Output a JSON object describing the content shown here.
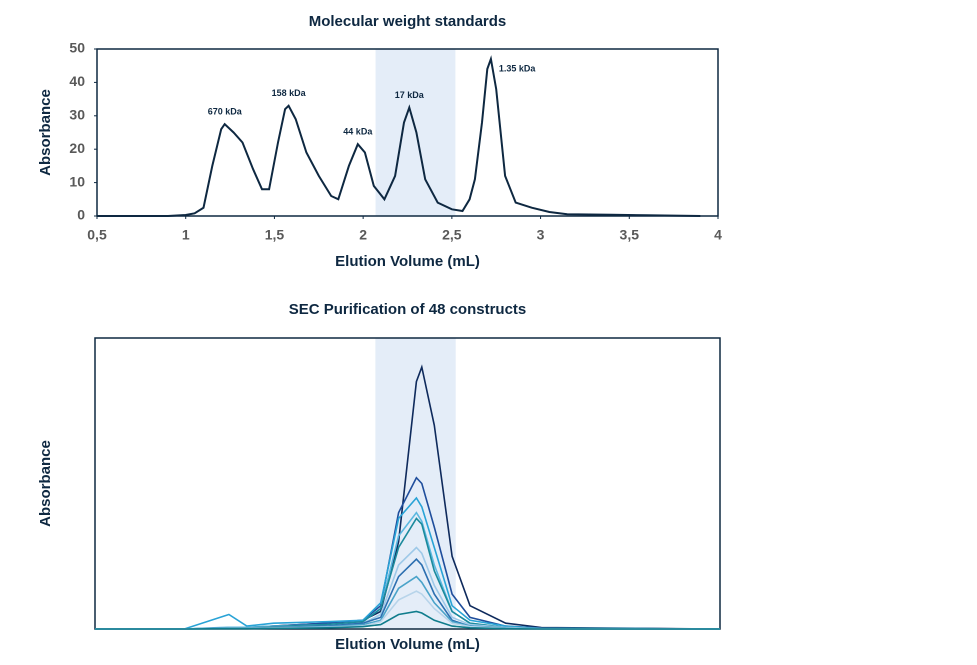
{
  "chart_data": [
    {
      "type": "line",
      "title": "Molecular weight standards",
      "x_label": "Elution Volume (mL)",
      "y_label": "Absorbance",
      "x": [
        0.5,
        0.9,
        1.0,
        1.05,
        1.1,
        1.15,
        1.2,
        1.22,
        1.27,
        1.32,
        1.38,
        1.43,
        1.47,
        1.52,
        1.56,
        1.58,
        1.62,
        1.68,
        1.75,
        1.82,
        1.86,
        1.92,
        1.97,
        2.01,
        2.06,
        2.12,
        2.18,
        2.23,
        2.26,
        2.3,
        2.35,
        2.42,
        2.5,
        2.56,
        2.6,
        2.63,
        2.67,
        2.7,
        2.72,
        2.75,
        2.8,
        2.86,
        2.95,
        3.05,
        3.15,
        3.4,
        3.6,
        3.9
      ],
      "values": [
        0,
        0,
        0.3,
        0.8,
        2.5,
        15,
        26,
        27.5,
        25,
        22,
        14,
        8,
        8,
        22,
        32,
        33,
        29,
        19,
        12,
        6,
        5,
        15,
        21.5,
        19,
        9,
        5,
        12,
        28,
        32.5,
        25,
        11,
        4,
        2,
        1.5,
        5,
        11,
        28,
        44,
        47,
        38,
        12,
        4,
        2.5,
        1.2,
        0.5,
        0.4,
        0.2,
        0
      ],
      "color": "#0e2841",
      "annotations": [
        "670 kDa",
        "158 kDa",
        "44 kDa",
        "17 kDa",
        "1.35  kDa"
      ],
      "shaded_range": [
        2.07,
        2.52
      ],
      "xlim": [
        0.5,
        4
      ],
      "ylim": [
        0,
        50
      ],
      "xticks": [
        {
          "value": 0.5,
          "label": "0,5"
        },
        1,
        {
          "value": 1.5,
          "label": "1,5"
        },
        2,
        {
          "value": 2.5,
          "label": "2,5"
        },
        3,
        {
          "value": 3.5,
          "label": "3,5"
        },
        4
      ],
      "yticks": [
        0,
        10,
        20,
        30,
        40,
        50
      ]
    },
    {
      "type": "multiline",
      "title": "SEC Purification of 48 constructs",
      "x_label": "Elution Volume (mL)",
      "y_label": "Absorbance",
      "x": [
        0.5,
        1.0,
        1.2,
        1.25,
        1.35,
        1.5,
        1.8,
        2.0,
        2.1,
        2.2,
        2.3,
        2.33,
        2.4,
        2.5,
        2.6,
        2.8,
        3.0,
        4.0
      ],
      "shaded_range": [
        2.07,
        2.52
      ],
      "xlim": [
        0.5,
        4
      ],
      "ylim": [
        0,
        100
      ],
      "series": [
        {
          "color": "#0e2a5c",
          "values": [
            0,
            0,
            0.3,
            0.5,
            0.5,
            1,
            2,
            3,
            6,
            30,
            85,
            90,
            70,
            25,
            8,
            2,
            0.5,
            0
          ]
        },
        {
          "color": "#1f4e9c",
          "values": [
            0,
            0,
            0.3,
            0.4,
            0.4,
            1,
            2,
            3,
            8,
            40,
            52,
            50,
            35,
            12,
            4,
            1,
            0.3,
            0
          ]
        },
        {
          "color": "#29a3d6",
          "values": [
            0,
            0,
            4,
            5,
            1,
            2,
            2.5,
            3,
            9,
            38,
            45,
            42,
            28,
            8,
            3,
            1,
            0.2,
            0
          ]
        },
        {
          "color": "#5bb8e0",
          "values": [
            0,
            0,
            0.5,
            0.6,
            0.6,
            1,
            1.5,
            2.5,
            7,
            32,
            40,
            37,
            22,
            6,
            2,
            0.5,
            0.2,
            0
          ]
        },
        {
          "color": "#1b8a9c",
          "values": [
            0,
            0,
            0.2,
            0.3,
            0.3,
            0.8,
            1.5,
            2.5,
            7,
            28,
            38,
            36,
            20,
            6,
            2,
            0.5,
            0.2,
            0
          ]
        },
        {
          "color": "#9ec9e8",
          "values": [
            0,
            0,
            0.2,
            0.3,
            0.3,
            0.6,
            1,
            2,
            5,
            22,
            28,
            26,
            15,
            4,
            1.5,
            0.5,
            0.1,
            0
          ]
        },
        {
          "color": "#2c6fb0",
          "values": [
            0,
            0,
            0.2,
            0.2,
            0.2,
            0.5,
            1,
            2,
            4,
            18,
            24,
            22,
            12,
            3,
            1,
            0.3,
            0.1,
            0
          ]
        },
        {
          "color": "#4aa3c9",
          "values": [
            0,
            0,
            0.1,
            0.2,
            0.2,
            0.4,
            0.8,
            1.5,
            3,
            14,
            18,
            16,
            9,
            2.5,
            1,
            0.3,
            0.1,
            0
          ]
        },
        {
          "color": "#b7d4ea",
          "values": [
            0,
            0,
            0.1,
            0.1,
            0.1,
            0.3,
            0.6,
            1,
            2.5,
            10,
            13,
            12,
            7,
            2,
            0.8,
            0.2,
            0,
            0
          ]
        },
        {
          "color": "#0f7c8c",
          "values": [
            0,
            0,
            0.1,
            0.1,
            0.1,
            0.2,
            0.4,
            0.8,
            1.5,
            5,
            6,
            5.5,
            3,
            1,
            0.4,
            0.1,
            0,
            0
          ]
        }
      ]
    }
  ]
}
